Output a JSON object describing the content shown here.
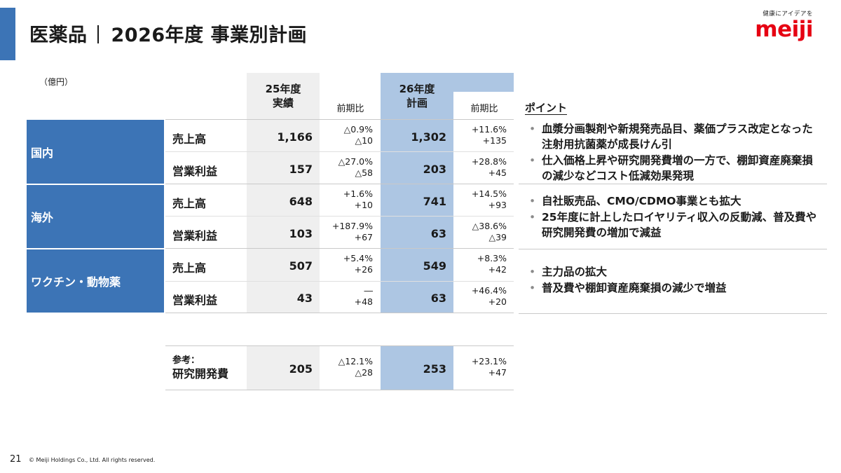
{
  "header": {
    "section": "医薬品",
    "title": "2026年度 事業別計画"
  },
  "logo": {
    "tagline": "健康にアイデアを",
    "brand": "meiji"
  },
  "unit": "（億円）",
  "table": {
    "col_fy25": [
      "25年度",
      "実績"
    ],
    "col_fy26": [
      "26年度",
      "計画"
    ],
    "col_yoy": "前期比",
    "segments": [
      {
        "name": "国内",
        "rows": [
          {
            "metric": "売上高",
            "fy25": "1,166",
            "yoy25_pct": "△0.9%",
            "yoy25_abs": "△10",
            "fy26": "1,302",
            "yoy26_pct": "+11.6%",
            "yoy26_abs": "+135"
          },
          {
            "metric": "営業利益",
            "fy25": "157",
            "yoy25_pct": "△27.0%",
            "yoy25_abs": "△58",
            "fy26": "203",
            "yoy26_pct": "+28.8%",
            "yoy26_abs": "+45"
          }
        ]
      },
      {
        "name": "海外",
        "rows": [
          {
            "metric": "売上高",
            "fy25": "648",
            "yoy25_pct": "+1.6%",
            "yoy25_abs": "+10",
            "fy26": "741",
            "yoy26_pct": "+14.5%",
            "yoy26_abs": "+93"
          },
          {
            "metric": "営業利益",
            "fy25": "103",
            "yoy25_pct": "+187.9%",
            "yoy25_abs": "+67",
            "fy26": "63",
            "yoy26_pct": "△38.6%",
            "yoy26_abs": "△39"
          }
        ]
      },
      {
        "name": "ワクチン・動物薬",
        "rows": [
          {
            "metric": "売上高",
            "fy25": "507",
            "yoy25_pct": "+5.4%",
            "yoy25_abs": "+26",
            "fy26": "549",
            "yoy26_pct": "+8.3%",
            "yoy26_abs": "+42"
          },
          {
            "metric": "営業利益",
            "fy25": "43",
            "yoy25_pct": "―",
            "yoy25_abs": "+48",
            "fy26": "63",
            "yoy26_pct": "+46.4%",
            "yoy26_abs": "+20"
          }
        ]
      }
    ],
    "reference": {
      "label1": "参考：",
      "label2": "研究開発費",
      "fy25": "205",
      "yoy25_pct": "△12.1%",
      "yoy25_abs": "△28",
      "fy26": "253",
      "yoy26_pct": "+23.1%",
      "yoy26_abs": "+47"
    }
  },
  "points": {
    "title": "ポイント",
    "groups": [
      [
        "血漿分画製剤や新規発売品目、薬価プラス改定となった注射用抗菌薬が成長けん引",
        "仕入価格上昇や研究開発費増の一方で、棚卸資産廃棄損の減少などコスト低減効果発現"
      ],
      [
        "自社販売品、CMO/CDMO事業とも拡大",
        "25年度に計上したロイヤリティ収入の反動減、普及費や研究開発費の増加で減益"
      ],
      [
        "主力品の拡大",
        "普及費や棚卸資産廃棄損の減少で増益"
      ]
    ]
  },
  "footer": {
    "page": "21",
    "copyright": "© Meiji Holdings Co., Ltd. All rights reserved."
  },
  "colors": {
    "accent": "#3c74b6",
    "plan_column": "#adc6e3",
    "actual_column": "#efefef",
    "brand": "#e60012"
  }
}
